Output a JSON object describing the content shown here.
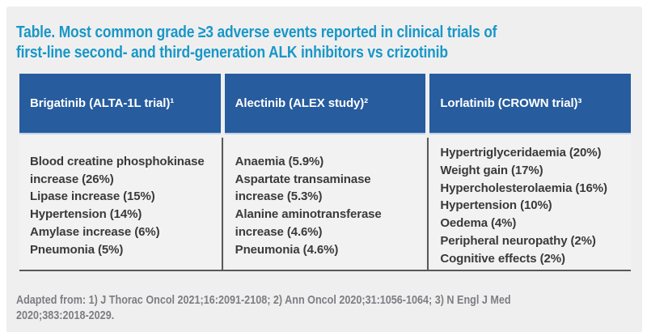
{
  "title": {
    "line1": "Table. Most common grade ≥3 adverse events reported in clinical trials of",
    "line2": "first-line second- and third-generation ALK inhibitors vs crizotinib"
  },
  "table": {
    "columns": [
      {
        "header": "Brigatinib (ALTA-1L trial)¹",
        "events": [
          "Blood creatine phosphokinase increase (26%)",
          "Lipase increase (15%)",
          "Hypertension (14%)",
          "Amylase increase (6%)",
          "Pneumonia (5%)"
        ]
      },
      {
        "header": "Alectinib (ALEX study)²",
        "events": [
          "Anaemia (5.9%)",
          "Aspartate transaminase increase (5.3%)",
          "Alanine aminotransferase increase (4.6%)",
          "Pneumonia (4.6%)"
        ]
      },
      {
        "header": "Lorlatinib (CROWN trial)³",
        "events": [
          "Hypertriglyceridaemia (20%)",
          "Weight gain (17%)",
          "Hypercholesterolaemia (16%)",
          "Hypertension (10%)",
          "Oedema (4%)",
          "Peripheral neuropathy (2%)",
          "Cognitive effects (2%)"
        ]
      }
    ]
  },
  "footer": {
    "line1": "Adapted from: 1) J Thorac Oncol 2021;16:2091-2108; 2) Ann Oncol 2020;31:1056-1064; 3) N Engl J Med",
    "line2": "2020;383:2018-2029."
  },
  "colors": {
    "title_text": "#1897c7",
    "header_bg": "#275c9e",
    "header_text": "#ffffff",
    "body_text": "#3a3a3b",
    "divider": "#58595b",
    "panel_bg": "#efeff0",
    "page_bg": "#ffffff",
    "footer_text": "#7d7e81"
  }
}
